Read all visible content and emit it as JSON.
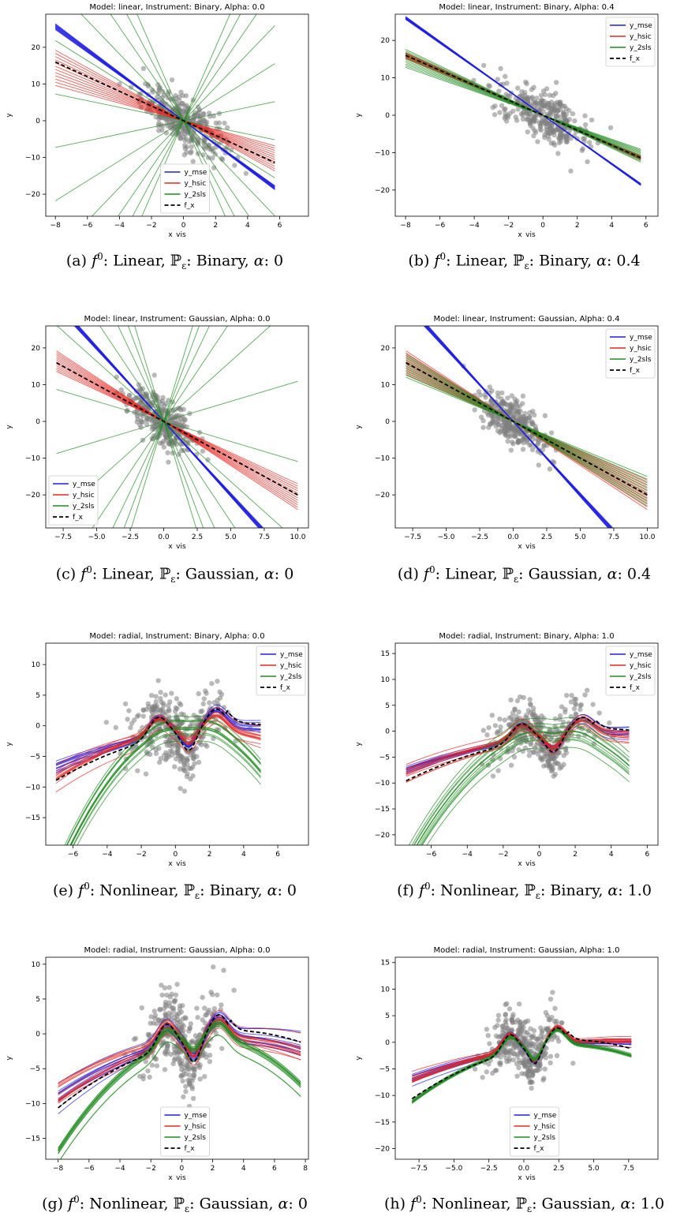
{
  "legend_labels": [
    "y_mse",
    "y_hsic",
    "y_2sls",
    "f_x"
  ],
  "colors": {
    "mse": "#1f1fe6",
    "hsic": "#e8261f",
    "sls": "#1f8c1f",
    "fx": "#000000",
    "scatter": "#7f7f7f"
  },
  "chart_data": [
    {
      "type": "line",
      "title": "Model: linear, Instrument: Binary, Alpha: 0.0",
      "xlabel": "x_vis",
      "ylabel": "y",
      "xlim": [
        -8.6,
        7.8
      ],
      "ylim": [
        -26,
        29
      ],
      "xticks": [
        -8,
        -6,
        -4,
        -2,
        0,
        2,
        4,
        6
      ],
      "yticks": [
        -20,
        -10,
        0,
        10,
        20
      ],
      "xtick_labels": [
        "−8",
        "−6",
        "−4",
        "−2",
        "0",
        "2",
        "4",
        "6"
      ],
      "ytick_labels": [
        "−20",
        "−10",
        "0",
        "10",
        "20"
      ],
      "legend": "lower-center",
      "model": "linear",
      "x_range": [
        -8,
        5.7
      ],
      "f_slope": -2,
      "series": [
        {
          "name": "y_mse",
          "slopes": [
            -3.3,
            -3.1
          ]
        },
        {
          "name": "y_hsic",
          "slopes": [
            -2.4,
            -1.2
          ]
        },
        {
          "name": "y_2sls",
          "slopes": [
            -10,
            10
          ]
        }
      ],
      "scatter_x_range": [
        -4,
        7
      ]
    },
    {
      "type": "line",
      "title": "Model: linear, Instrument: Binary, Alpha: 0.4",
      "xlabel": "x_vis",
      "ylabel": "y",
      "xlim": [
        -8.6,
        6.7
      ],
      "ylim": [
        -27,
        27
      ],
      "xticks": [
        -8,
        -6,
        -4,
        -2,
        0,
        2,
        4,
        6
      ],
      "yticks": [
        -20,
        -10,
        0,
        10,
        20
      ],
      "xtick_labels": [
        "−8",
        "−6",
        "−4",
        "−2",
        "0",
        "2",
        "4",
        "6"
      ],
      "ytick_labels": [
        "−20",
        "−10",
        "0",
        "10",
        "20"
      ],
      "legend": "top-right",
      "model": "linear",
      "x_range": [
        -8,
        5.7
      ],
      "f_slope": -2,
      "series": [
        {
          "name": "y_mse",
          "slopes": [
            -3.3,
            -3.2
          ]
        },
        {
          "name": "y_hsic",
          "slopes": [
            -2.1,
            -1.9
          ]
        },
        {
          "name": "y_2sls",
          "slopes": [
            -2.2,
            -1.6
          ]
        }
      ],
      "scatter_x_range": [
        -5,
        6
      ]
    },
    {
      "type": "line",
      "title": "Model: linear, Instrument: Gaussian, Alpha: 0.0",
      "xlabel": "x_vis",
      "ylabel": "y",
      "xlim": [
        -8.8,
        10.8
      ],
      "ylim": [
        -29,
        26
      ],
      "xticks": [
        -7.5,
        -5,
        -2.5,
        0,
        2.5,
        5,
        7.5,
        10
      ],
      "yticks": [
        -20,
        -10,
        0,
        10,
        20
      ],
      "xtick_labels": [
        "−7.5",
        "−5.0",
        "−2.5",
        "0.0",
        "2.5",
        "5.0",
        "7.5",
        "10.0"
      ],
      "ytick_labels": [
        "−20",
        "−10",
        "0",
        "10",
        "20"
      ],
      "legend": "lower-left",
      "model": "linear",
      "x_range": [
        -8,
        10
      ],
      "f_slope": -2,
      "series": [
        {
          "name": "y_mse",
          "slopes": [
            -4.1,
            -3.9
          ]
        },
        {
          "name": "y_hsic",
          "slopes": [
            -2.4,
            -1.7
          ]
        },
        {
          "name": "y_2sls",
          "slopes": [
            -12,
            12
          ]
        }
      ],
      "scatter_x_range": [
        -4,
        6
      ]
    },
    {
      "type": "line",
      "title": "Model: linear, Instrument: Gaussian, Alpha: 0.4",
      "xlabel": "x_vis",
      "ylabel": "y",
      "xlim": [
        -8.8,
        10.8
      ],
      "ylim": [
        -29,
        26
      ],
      "xticks": [
        -7.5,
        -5,
        -2.5,
        0,
        2.5,
        5,
        7.5,
        10
      ],
      "yticks": [
        -20,
        -10,
        0,
        10,
        20
      ],
      "xtick_labels": [
        "−7.5",
        "−5.0",
        "−2.5",
        "0.0",
        "2.5",
        "5.0",
        "7.5",
        "10.0"
      ],
      "ytick_labels": [
        "−20",
        "−10",
        "0",
        "10",
        "20"
      ],
      "legend": "top-right",
      "model": "linear",
      "x_range": [
        -8,
        10
      ],
      "f_slope": -2,
      "series": [
        {
          "name": "y_mse",
          "slopes": [
            -4.1,
            -3.9
          ]
        },
        {
          "name": "y_hsic",
          "slopes": [
            -2.4,
            -1.6
          ]
        },
        {
          "name": "y_2sls",
          "slopes": [
            -2.3,
            -1.5
          ]
        }
      ],
      "scatter_x_range": [
        -4,
        5
      ]
    },
    {
      "type": "line",
      "title": "Model: radial, Instrument: Binary, Alpha: 0.0",
      "xlabel": "x_vis",
      "ylabel": "y",
      "xlim": [
        -7.6,
        7.8
      ],
      "ylim": [
        -19.5,
        13.5
      ],
      "xticks": [
        -6,
        -4,
        -2,
        0,
        2,
        4,
        6
      ],
      "yticks": [
        -15,
        -10,
        -5,
        0,
        5,
        10
      ],
      "xtick_labels": [
        "−6",
        "−4",
        "−2",
        "0",
        "2",
        "4",
        "6"
      ],
      "ytick_labels": [
        "−15",
        "−10",
        "−5",
        "0",
        "5",
        "10"
      ],
      "legend": "top-right",
      "model": "radial",
      "x_range": [
        -7,
        5
      ],
      "series": [
        {
          "name": "y_mse",
          "scale": 0.85
        },
        {
          "name": "y_hsic",
          "scale": 0.7
        },
        {
          "name": "y_2sls",
          "scale": 0.1
        }
      ],
      "scatter_x_range": [
        -5,
        7
      ]
    },
    {
      "type": "line",
      "title": "Model: radial, Instrument: Binary, Alpha: 1.0",
      "xlabel": "x_vis",
      "ylabel": "y",
      "xlim": [
        -8.0,
        6.6
      ],
      "ylim": [
        -22,
        17
      ],
      "xticks": [
        -6,
        -4,
        -2,
        0,
        2,
        4,
        6
      ],
      "yticks": [
        -20,
        -15,
        -10,
        -5,
        0,
        5,
        10,
        15
      ],
      "xtick_labels": [
        "−6",
        "−4",
        "−2",
        "0",
        "2",
        "4",
        "6"
      ],
      "ytick_labels": [
        "−20",
        "−15",
        "−10",
        "−5",
        "0",
        "5",
        "10",
        "15"
      ],
      "legend": "top-right",
      "model": "radial",
      "x_range": [
        -7.4,
        5
      ],
      "series": [
        {
          "name": "y_mse",
          "scale": 0.85
        },
        {
          "name": "y_hsic",
          "scale": 0.8
        },
        {
          "name": "y_2sls",
          "scale": 0.15
        }
      ],
      "scatter_x_range": [
        -6,
        6
      ]
    },
    {
      "type": "line",
      "title": "Model: radial, Instrument: Gaussian, Alpha: 0.0",
      "xlabel": "x_vis",
      "ylabel": "y",
      "xlim": [
        -8.8,
        8.2
      ],
      "ylim": [
        -18,
        11
      ],
      "xticks": [
        -8,
        -6,
        -4,
        -2,
        0,
        2,
        4,
        6,
        8
      ],
      "yticks": [
        -15,
        -10,
        -5,
        0,
        5,
        10
      ],
      "xtick_labels": [
        "−8",
        "−6",
        "−4",
        "−2",
        "0",
        "2",
        "4",
        "6",
        "8"
      ],
      "ytick_labels": [
        "−15",
        "−10",
        "−5",
        "0",
        "5",
        "10"
      ],
      "legend": "lower-center",
      "model": "radial",
      "x_range": [
        -8,
        7.7
      ],
      "series": [
        {
          "name": "y_mse",
          "scale": 0.8
        },
        {
          "name": "y_hsic",
          "scale": 0.8
        },
        {
          "name": "y_2sls",
          "scale": 0.6
        }
      ],
      "scatter_x_range": [
        -4,
        7
      ]
    },
    {
      "type": "line",
      "title": "Model: radial, Instrument: Gaussian, Alpha: 1.0",
      "xlabel": "x_vis",
      "ylabel": "y",
      "xlim": [
        -9.2,
        9.6
      ],
      "ylim": [
        -22,
        16
      ],
      "xticks": [
        -7.5,
        -5,
        -2.5,
        0,
        2.5,
        5,
        7.5
      ],
      "yticks": [
        -20,
        -15,
        -10,
        -5,
        0,
        5,
        10,
        15
      ],
      "xtick_labels": [
        "−7.5",
        "−5.0",
        "−2.5",
        "0.0",
        "2.5",
        "5.0",
        "7.5"
      ],
      "ytick_labels": [
        "−20",
        "−15",
        "−10",
        "−5",
        "0",
        "5",
        "10",
        "15"
      ],
      "legend": "lower-center",
      "model": "radial",
      "x_range": [
        -8,
        7.7
      ],
      "series": [
        {
          "name": "y_mse",
          "scale": 0.9
        },
        {
          "name": "y_hsic",
          "scale": 0.9
        },
        {
          "name": "y_2sls",
          "scale": 0.8
        }
      ],
      "scatter_x_range": [
        -5,
        9
      ]
    }
  ],
  "captions": [
    {
      "label": "(a)",
      "model": "Linear",
      "instrument": "Binary",
      "alpha": "0"
    },
    {
      "label": "(b)",
      "model": "Linear",
      "instrument": "Binary",
      "alpha": "0.4"
    },
    {
      "label": "(c)",
      "model": "Linear",
      "instrument": "Gaussian",
      "alpha": "0"
    },
    {
      "label": "(d)",
      "model": "Linear",
      "instrument": "Gaussian",
      "alpha": "0.4"
    },
    {
      "label": "(e)",
      "model": "Nonlinear",
      "instrument": "Binary",
      "alpha": "0"
    },
    {
      "label": "(f)",
      "model": "Nonlinear",
      "instrument": "Binary",
      "alpha": "1.0"
    },
    {
      "label": "(g)",
      "model": "Nonlinear",
      "instrument": "Gaussian",
      "alpha": "0"
    },
    {
      "label": "(h)",
      "model": "Nonlinear",
      "instrument": "Gaussian",
      "alpha": "1.0"
    }
  ]
}
